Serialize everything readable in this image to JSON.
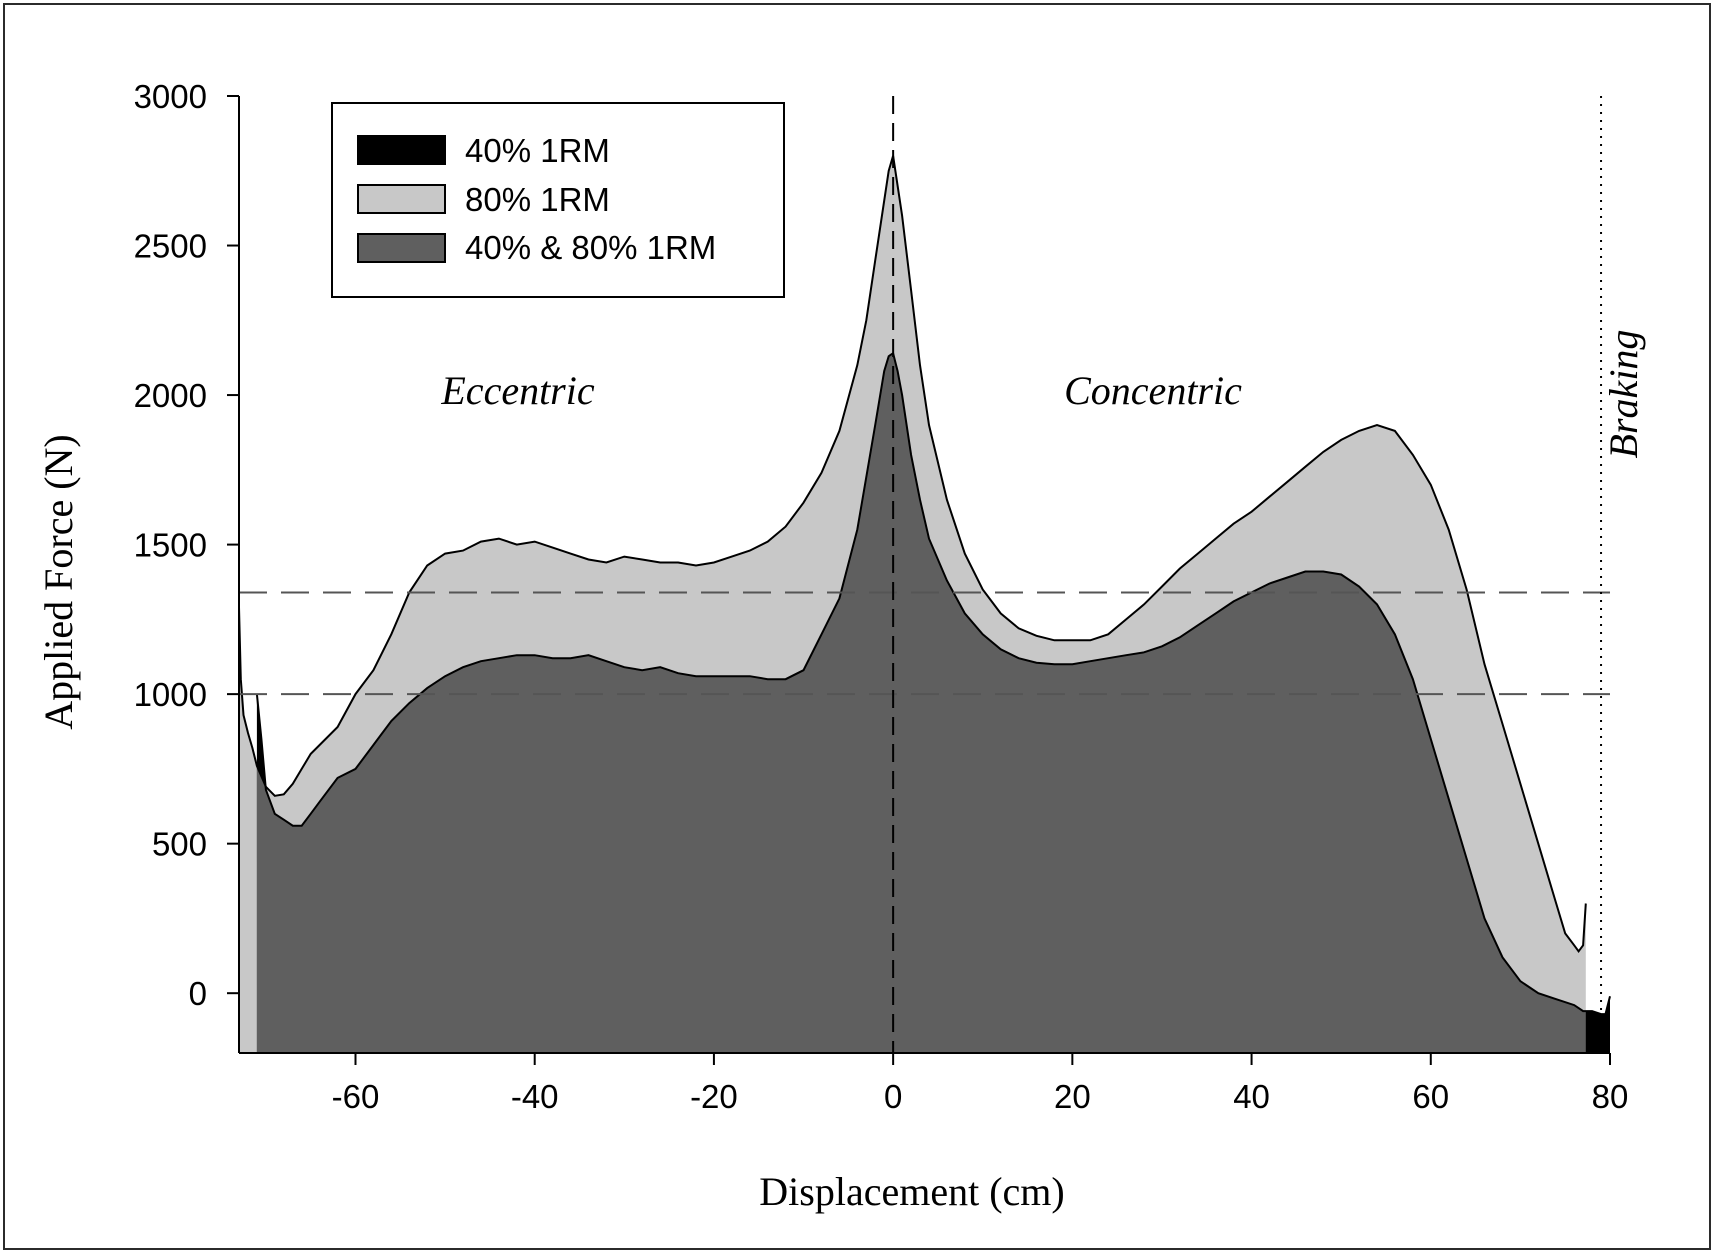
{
  "chart_data": {
    "type": "area",
    "xlabel": "Displacement (cm)",
    "ylabel": "Applied Force (N)",
    "xlim": [
      -73,
      80
    ],
    "ylim": [
      -200,
      3000
    ],
    "xticks": [
      -60,
      -40,
      -20,
      0,
      20,
      40,
      60,
      80
    ],
    "yticks": [
      0,
      500,
      1000,
      1500,
      2000,
      2500,
      3000
    ],
    "legend_position": "top-left",
    "legend": [
      {
        "label": "40% 1RM",
        "color": "#000000"
      },
      {
        "label": "80% 1RM",
        "color": "#c8c8c8"
      },
      {
        "label": "40% & 80% 1RM",
        "color": "#5f5f5f"
      }
    ],
    "annotations": {
      "eccentric": "Eccentric",
      "concentric": "Concentric",
      "braking": "Braking"
    },
    "reference_lines": {
      "horizontal": [
        1000,
        1340
      ],
      "vertical_dashed": 0,
      "vertical_dotted": 79
    },
    "series": [
      {
        "name": "80% 1RM",
        "x": [
          -73,
          -72.8,
          -72.5,
          -72,
          -71.5,
          -71,
          -70,
          -69,
          -68,
          -67,
          -66,
          -65,
          -64,
          -62,
          -60,
          -58,
          -56,
          -54,
          -52,
          -50,
          -48,
          -46,
          -44,
          -42,
          -40,
          -38,
          -36,
          -34,
          -32,
          -30,
          -28,
          -26,
          -24,
          -22,
          -20,
          -18,
          -16,
          -14,
          -12,
          -10,
          -8,
          -6,
          -4,
          -3,
          -2,
          -1,
          -0.5,
          0,
          0.5,
          1,
          2,
          3,
          4,
          6,
          8,
          10,
          12,
          14,
          16,
          18,
          20,
          22,
          24,
          26,
          28,
          30,
          32,
          34,
          36,
          38,
          40,
          42,
          44,
          46,
          48,
          50,
          52,
          54,
          56,
          58,
          60,
          62,
          64,
          66,
          68,
          70,
          72,
          74,
          75,
          76,
          76.5,
          77,
          77.3
        ],
        "y": [
          1290,
          1050,
          930,
          870,
          820,
          760,
          690,
          660,
          665,
          700,
          750,
          800,
          830,
          890,
          1000,
          1080,
          1200,
          1340,
          1430,
          1470,
          1480,
          1510,
          1520,
          1500,
          1510,
          1490,
          1470,
          1450,
          1440,
          1460,
          1450,
          1440,
          1440,
          1430,
          1440,
          1460,
          1480,
          1510,
          1560,
          1640,
          1740,
          1880,
          2100,
          2250,
          2450,
          2650,
          2750,
          2800,
          2700,
          2600,
          2350,
          2100,
          1900,
          1650,
          1470,
          1350,
          1270,
          1220,
          1195,
          1180,
          1180,
          1180,
          1200,
          1250,
          1300,
          1360,
          1420,
          1470,
          1520,
          1570,
          1610,
          1660,
          1710,
          1760,
          1810,
          1850,
          1880,
          1900,
          1880,
          1800,
          1700,
          1550,
          1350,
          1100,
          900,
          700,
          500,
          300,
          200,
          160,
          140,
          160,
          300
        ]
      },
      {
        "name": "40% 1RM",
        "x": [
          -71,
          -70.5,
          -70,
          -69,
          -68,
          -67,
          -66,
          -65,
          -64,
          -62,
          -60,
          -58,
          -56,
          -54,
          -52,
          -50,
          -48,
          -46,
          -44,
          -42,
          -40,
          -38,
          -36,
          -34,
          -32,
          -30,
          -28,
          -26,
          -24,
          -22,
          -20,
          -18,
          -16,
          -14,
          -12,
          -10,
          -8,
          -6,
          -4,
          -2,
          -1,
          -0.5,
          0,
          0.5,
          1,
          2,
          3,
          4,
          6,
          8,
          10,
          12,
          14,
          16,
          18,
          20,
          22,
          24,
          26,
          28,
          30,
          32,
          34,
          36,
          38,
          40,
          42,
          44,
          46,
          48,
          50,
          52,
          54,
          56,
          58,
          60,
          62,
          64,
          66,
          68,
          70,
          72,
          74,
          76,
          77,
          78,
          79,
          79.5,
          80
        ],
        "y": [
          1000,
          850,
          680,
          600,
          580,
          560,
          560,
          600,
          640,
          720,
          750,
          830,
          910,
          970,
          1020,
          1060,
          1090,
          1110,
          1120,
          1130,
          1130,
          1120,
          1120,
          1130,
          1110,
          1090,
          1080,
          1090,
          1070,
          1060,
          1060,
          1060,
          1060,
          1050,
          1050,
          1080,
          1200,
          1320,
          1550,
          1900,
          2080,
          2130,
          2140,
          2080,
          2000,
          1800,
          1650,
          1520,
          1380,
          1270,
          1200,
          1150,
          1120,
          1105,
          1100,
          1100,
          1110,
          1120,
          1130,
          1140,
          1160,
          1190,
          1230,
          1270,
          1310,
          1340,
          1370,
          1390,
          1410,
          1410,
          1400,
          1360,
          1300,
          1200,
          1050,
          850,
          650,
          450,
          250,
          120,
          40,
          0,
          -20,
          -40,
          -60,
          -60,
          -70,
          -70,
          -10
        ]
      }
    ]
  }
}
